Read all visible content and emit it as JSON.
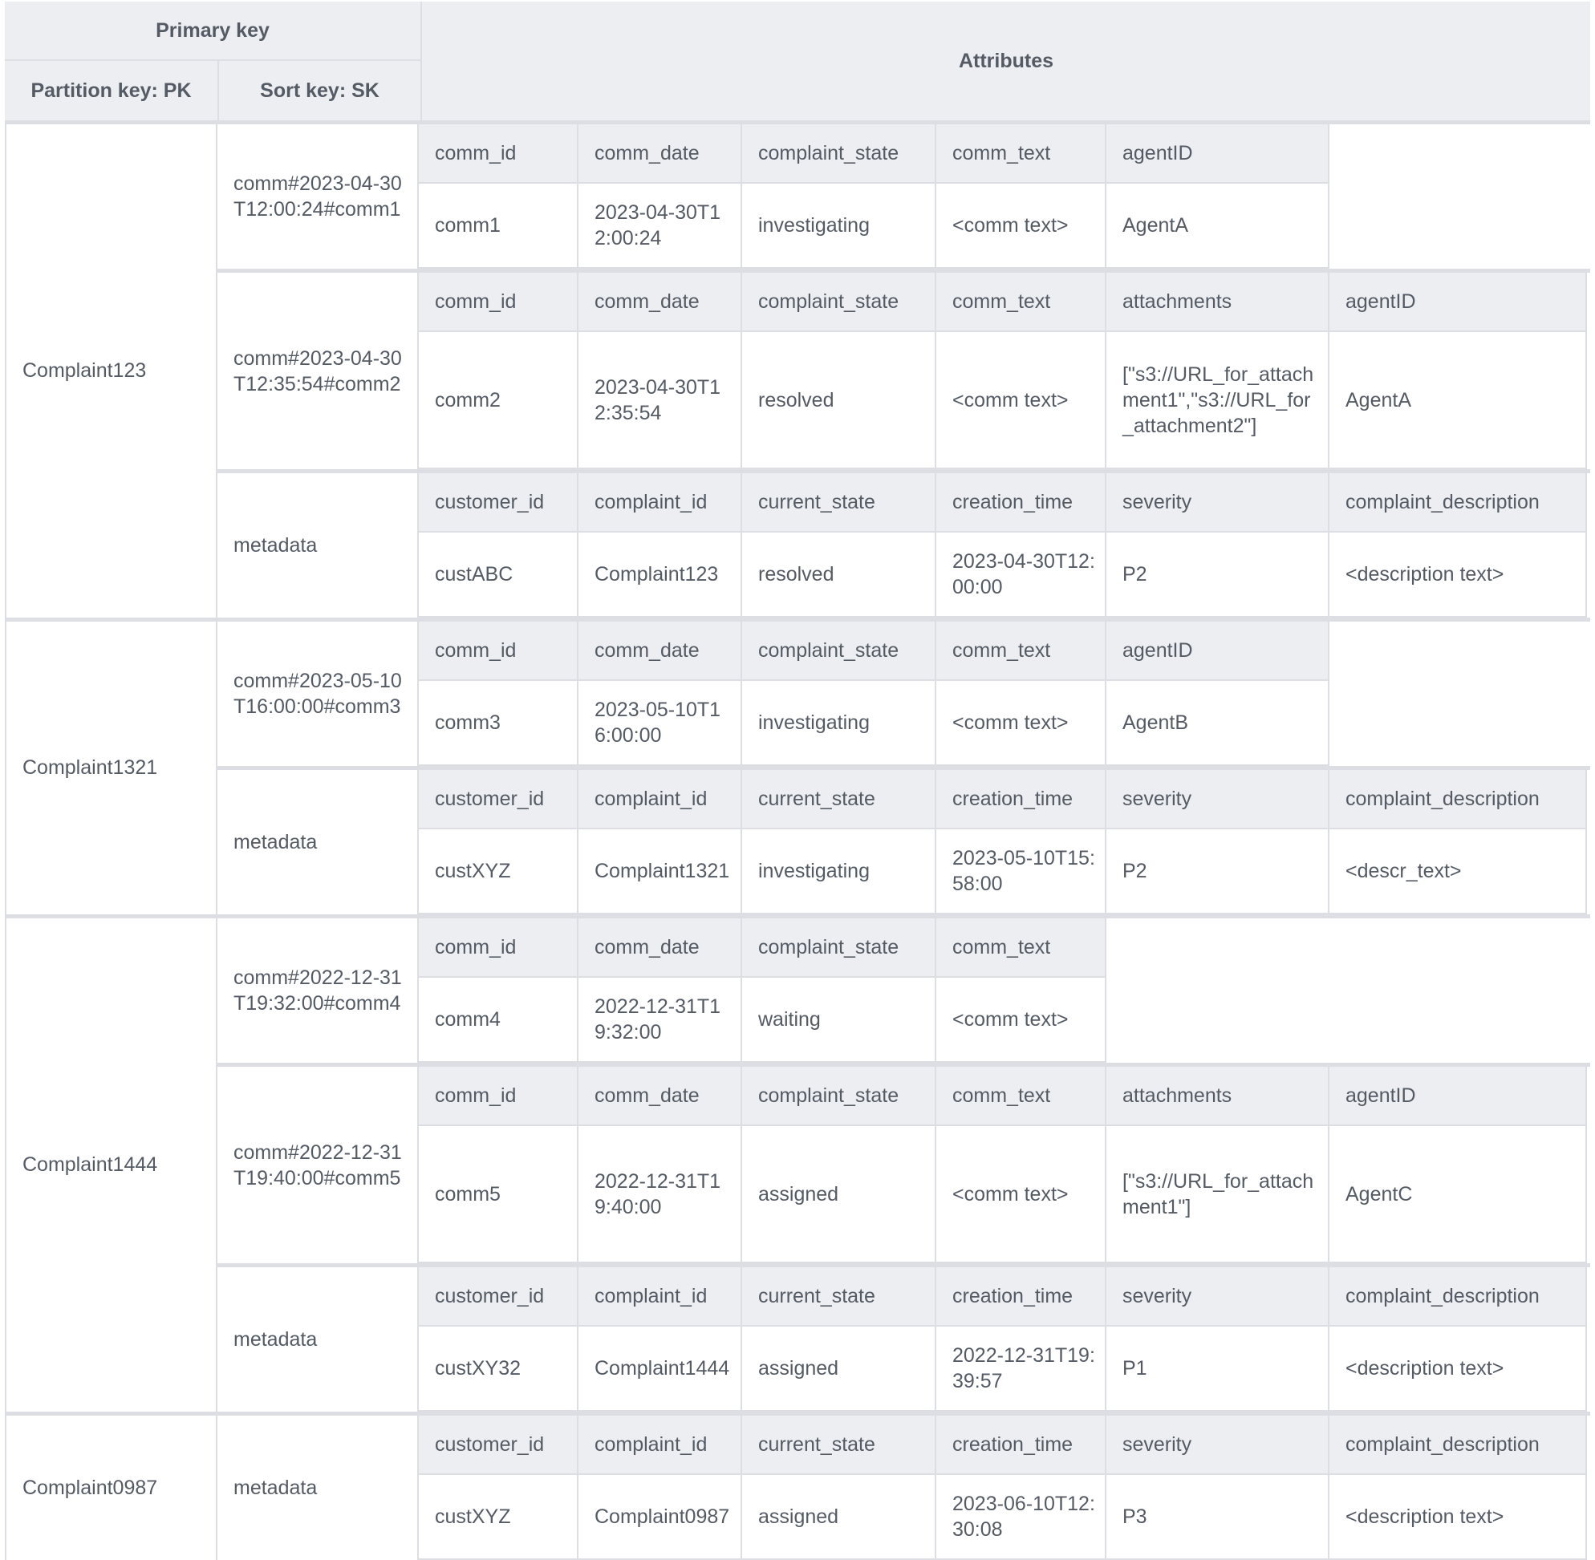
{
  "header": {
    "primary_key": "Primary key",
    "partition_key": "Partition key: PK",
    "sort_key": "Sort key: SK",
    "attributes": "Attributes"
  },
  "colors": {
    "header_bg": "#eceef2",
    "border": "#dcdee3",
    "text": "#545b64"
  },
  "groups": [
    {
      "pk": "Complaint123",
      "records": [
        {
          "sk": "comm#2023-04-30T12:00:24#comm1",
          "headers": [
            "comm_id",
            "comm_date",
            "complaint_state",
            "comm_text",
            "agentID"
          ],
          "values": [
            "comm1",
            "2023-04-30T12:00:24",
            "investigating",
            "<comm text>",
            "AgentA"
          ]
        },
        {
          "sk": "comm#2023-04-30T12:35:54#comm2",
          "headers": [
            "comm_id",
            "comm_date",
            "complaint_state",
            "comm_text",
            "attachments",
            "agentID"
          ],
          "values": [
            "comm2",
            "2023-04-30T12:35:54",
            "resolved",
            "<comm text>",
            "[\"s3://URL_for_attachment1\",\"s3://URL_for_attachment2\"]",
            "AgentA"
          ]
        },
        {
          "sk": "metadata",
          "headers": [
            "customer_id",
            "complaint_id",
            "current_state",
            "creation_time",
            "severity",
            "complaint_description"
          ],
          "values": [
            "custABC",
            "Complaint123",
            "resolved",
            "2023-04-30T12:00:00",
            "P2",
            "<description text>"
          ]
        }
      ]
    },
    {
      "pk": "Complaint1321",
      "records": [
        {
          "sk": "comm#2023-05-10T16:00:00#comm3",
          "headers": [
            "comm_id",
            "comm_date",
            "complaint_state",
            "comm_text",
            "agentID"
          ],
          "values": [
            "comm3",
            "2023-05-10T16:00:00",
            "investigating",
            "<comm text>",
            "AgentB"
          ]
        },
        {
          "sk": "metadata",
          "headers": [
            "customer_id",
            "complaint_id",
            "current_state",
            "creation_time",
            "severity",
            "complaint_description"
          ],
          "values": [
            "custXYZ",
            "Complaint1321",
            "investigating",
            "2023-05-10T15:58:00",
            "P2",
            "<descr_text>"
          ]
        }
      ]
    },
    {
      "pk": "Complaint1444",
      "records": [
        {
          "sk": "comm#2022-12-31T19:32:00#comm4",
          "headers": [
            "comm_id",
            "comm_date",
            "complaint_state",
            "comm_text"
          ],
          "values": [
            "comm4",
            "2022-12-31T19:32:00",
            "waiting",
            "<comm text>"
          ]
        },
        {
          "sk": "comm#2022-12-31T19:40:00#comm5",
          "headers": [
            "comm_id",
            "comm_date",
            "complaint_state",
            "comm_text",
            "attachments",
            "agentID"
          ],
          "values": [
            "comm5",
            "2022-12-31T19:40:00",
            "assigned",
            "<comm text>",
            "[\"s3://URL_for_attachment1\"]",
            "AgentC"
          ]
        },
        {
          "sk": "metadata",
          "headers": [
            "customer_id",
            "complaint_id",
            "current_state",
            "creation_time",
            "severity",
            "complaint_description"
          ],
          "values": [
            "custXY32",
            "Complaint1444",
            "assigned",
            "2022-12-31T19:39:57",
            "P1",
            "<description text>"
          ]
        }
      ]
    },
    {
      "pk": "Complaint0987",
      "records": [
        {
          "sk": "metadata",
          "headers": [
            "customer_id",
            "complaint_id",
            "current_state",
            "creation_time",
            "severity",
            "complaint_description"
          ],
          "values": [
            "custXYZ",
            "Complaint0987",
            "assigned",
            "2023-06-10T12:30:08",
            "P3",
            "<description text>"
          ]
        }
      ]
    }
  ]
}
